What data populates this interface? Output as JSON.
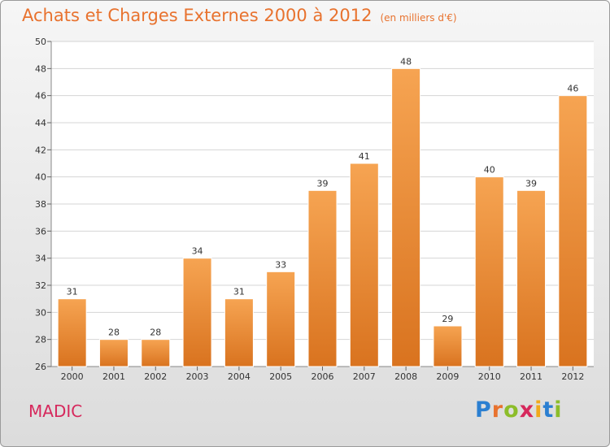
{
  "header": {
    "title": "Achats et Charges Externes 2000 à 2012",
    "subtitle": "(en milliers d'€)"
  },
  "footer": {
    "town": "MADIC",
    "logo_letters": [
      "P",
      "r",
      "o",
      "x",
      "i",
      "t",
      "i"
    ],
    "logo_colors": [
      "#2b7fd1",
      "#e8722e",
      "#8cbd2a",
      "#d6285c",
      "#f1a91c",
      "#2b7fd1",
      "#8cbd2a"
    ]
  },
  "chart_data": {
    "type": "bar",
    "categories": [
      "2000",
      "2001",
      "2002",
      "2003",
      "2004",
      "2005",
      "2006",
      "2007",
      "2008",
      "2009",
      "2010",
      "2011",
      "2012"
    ],
    "values": [
      31,
      28,
      28,
      34,
      31,
      33,
      39,
      41,
      48,
      29,
      40,
      39,
      46
    ],
    "title": "Achats et Charges Externes 2000 à 2012",
    "ylim": [
      26,
      50
    ],
    "yticks": [
      26,
      28,
      30,
      32,
      34,
      36,
      38,
      40,
      42,
      44,
      46,
      48,
      50
    ],
    "grid": true,
    "bar_color": "#f0923b"
  }
}
